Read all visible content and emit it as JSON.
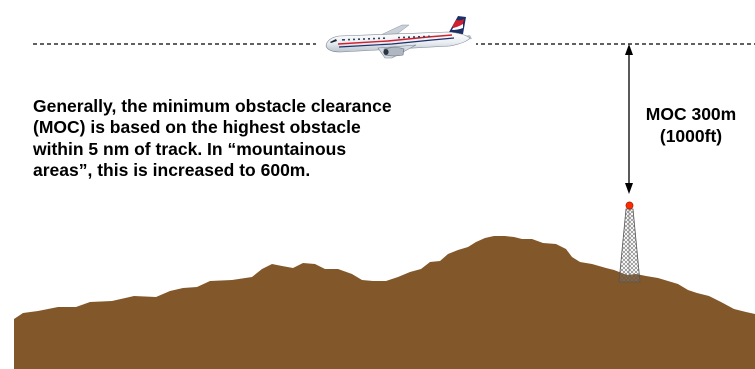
{
  "description": "Generally, the minimum obstacle clearance (MOC) is based on the highest obstacle within 5 nm of track.  In “mountainous areas”, this is increased to 600m.",
  "moc_label": {
    "line1": "MOC 300m",
    "line2": "(1000ft)"
  },
  "colors": {
    "terrain": "#82572a",
    "flight_path": "#000000",
    "obstacle_light": "#ff2a00",
    "text": "#000000"
  },
  "icons": [
    "airliner-icon",
    "radio-mast-icon",
    "double-arrow-icon"
  ]
}
